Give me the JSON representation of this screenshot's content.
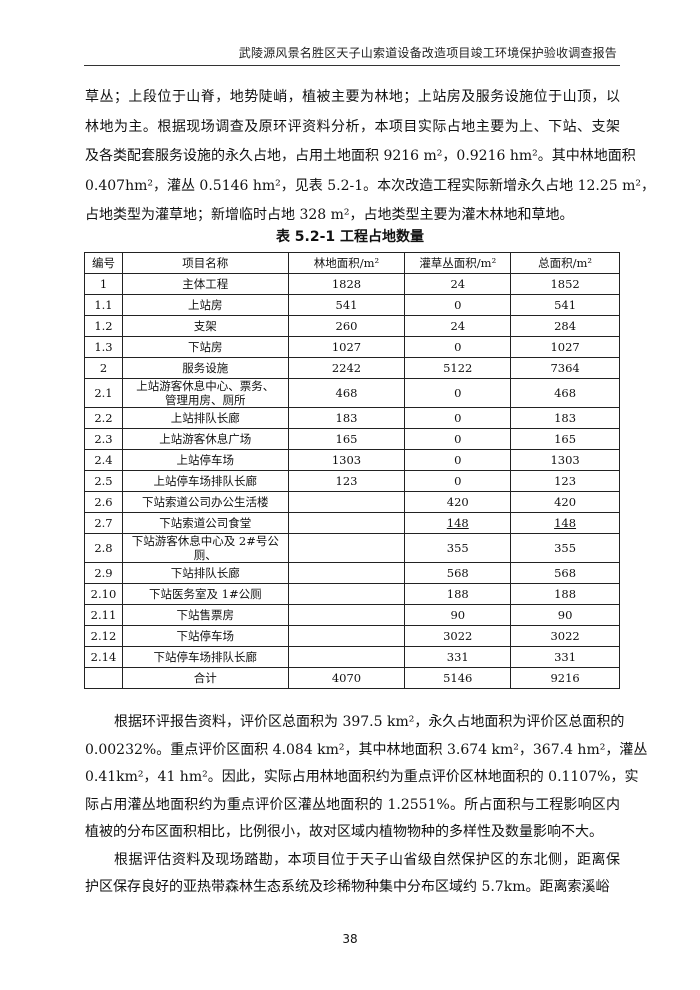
{
  "header": {
    "title": "武陵源风景名胜区天子山索道设备改造项目竣工环境保护验收调查报告"
  },
  "paragraph1": {
    "lines": [
      "草丛；上段位于山脊，地势陡峭，植被主要为林地；上站房及服务设施位于山顶，以",
      "林地为主。根据现场调查及原环评资料分析，本项目实际占地主要为上、下站、支架",
      "及各类配套服务设施的永久占地，占用土地面积 9216 m²，0.9216 hm²。其中林地面积",
      "0.407hm²，灌丛 0.5146 hm²，见表 5.2-1。本次改造工程实际新增永久占地 12.25 m²，",
      "占地类型为灌草地；新增临时占地 328 m²，占地类型主要为灌木林地和草地。"
    ]
  },
  "table": {
    "caption": "表 5.2-1    工程占地数量",
    "headers": [
      "编号",
      "项目名称",
      "林地面积/m²",
      "灌草丛面积/m²",
      "总面积/m²"
    ],
    "rows": [
      {
        "no": "1",
        "name": "主体工程",
        "forest": "1828",
        "shrub": "24",
        "total": "1852"
      },
      {
        "no": "1.1",
        "name": "上站房",
        "forest": "541",
        "shrub": "0",
        "total": "541"
      },
      {
        "no": "1.2",
        "name": "支架",
        "forest": "260",
        "shrub": "24",
        "total": "284"
      },
      {
        "no": "1.3",
        "name": "下站房",
        "forest": "1027",
        "shrub": "0",
        "total": "1027"
      },
      {
        "no": "2",
        "name": "服务设施",
        "forest": "2242",
        "shrub": "5122",
        "total": "7364"
      },
      {
        "no": "2.1",
        "name": "上站游客休息中心、票务、",
        "name2": "管理用房、厕所",
        "forest": "468",
        "shrub": "0",
        "total": "468"
      },
      {
        "no": "2.2",
        "name": "上站排队长廊",
        "forest": "183",
        "shrub": "0",
        "total": "183"
      },
      {
        "no": "2.3",
        "name": "上站游客休息广场",
        "forest": "165",
        "shrub": "0",
        "total": "165"
      },
      {
        "no": "2.4",
        "name": "上站停车场",
        "forest": "1303",
        "shrub": "0",
        "total": "1303"
      },
      {
        "no": "2.5",
        "name": "上站停车场排队长廊",
        "forest": "123",
        "shrub": "0",
        "total": "123"
      },
      {
        "no": "2.6",
        "name": "下站索道公司办公生活楼",
        "forest": "",
        "shrub": "420",
        "total": "420"
      },
      {
        "no": "2.7",
        "name": "下站索道公司食堂",
        "forest": "",
        "shrub": "148",
        "total": "148",
        "underline": true
      },
      {
        "no": "2.8",
        "name": "下站游客休息中心及 2#号公",
        "name2": "厕、",
        "forest": "",
        "shrub": "355",
        "total": "355"
      },
      {
        "no": "2.9",
        "name": "下站排队长廊",
        "forest": "",
        "shrub": "568",
        "total": "568"
      },
      {
        "no": "2.10",
        "name": "下站医务室及 1#公厕",
        "forest": "",
        "shrub": "188",
        "total": "188"
      },
      {
        "no": "2.11",
        "name": "下站售票房",
        "forest": "",
        "shrub": "90",
        "total": "90"
      },
      {
        "no": "2.12",
        "name": "下站停车场",
        "forest": "",
        "shrub": "3022",
        "total": "3022"
      },
      {
        "no": "2.14",
        "name": "下站停车场排队长廊",
        "forest": "",
        "shrub": "331",
        "total": "331"
      },
      {
        "no": "",
        "name": "合计",
        "forest": "4070",
        "shrub": "5146",
        "total": "9216"
      }
    ]
  },
  "paragraph2": {
    "lines": [
      "根据环评报告资料，评价区总面积为 397.5 km²，永久占地面积为评价区总面积的",
      "0.00232%。重点评价区面积 4.084 km²，其中林地面积 3.674 km²，367.4 hm²，灌丛",
      "0.41km²，41 hm²。因此，实际占用林地面积约为重点评价区林地面积的 0.1107%，实",
      "际占用灌丛地面积约为重点评价区灌丛地面积的 1.2551%。所占面积与工程影响区内",
      "植被的分布区面积相比，比例很小，故对区域内植物物种的多样性及数量影响不大。",
      "根据评估资料及现场踏勘，本项目位于天子山省级自然保护区的东北侧，距离保",
      "护区保存良好的亚热带森林生态系统及珍稀物种集中分布区域约 5.7km。距离索溪峪"
    ],
    "indent_lines": [
      0,
      5
    ],
    "last_lines": [
      4
    ]
  },
  "page_number": "38"
}
